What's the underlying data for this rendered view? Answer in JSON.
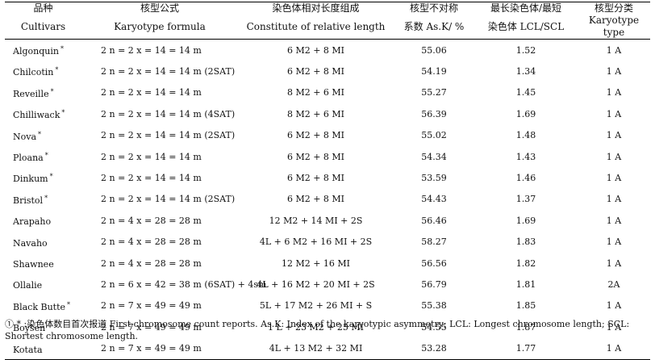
{
  "table": {
    "headers": [
      {
        "zh": "品种",
        "en": "Cultivars"
      },
      {
        "zh": "核型公式",
        "en": "Karyotype formula"
      },
      {
        "zh": "染色体相对长度组成",
        "en": "Constitute of relative length"
      },
      {
        "zh": "核型不对称",
        "en": "系数 As.K/ %"
      },
      {
        "zh": "最长染色体/最短",
        "en": "染色体 LCL/SCL"
      },
      {
        "zh": "核型分类",
        "en": "Karyotype type"
      }
    ],
    "rows": [
      {
        "cultivar": "Algonquin",
        "mark": "*",
        "formula": "2 n = 2 x = 14 = 14 m",
        "constitute": "6 M2 + 8 MI",
        "asym": "55.06",
        "ratio": "1.52",
        "type": "1 A"
      },
      {
        "cultivar": "Chilcotin",
        "mark": "*",
        "formula": "2 n = 2 x = 14 = 14 m (2SAT)",
        "constitute": "6 M2 + 8 MI",
        "asym": "54.19",
        "ratio": "1.34",
        "type": "1 A"
      },
      {
        "cultivar": "Reveille",
        "mark": "*",
        "formula": "2 n = 2 x = 14 = 14 m",
        "constitute": "8 M2 + 6 MI",
        "asym": "55.27",
        "ratio": "1.45",
        "type": "1 A"
      },
      {
        "cultivar": "Chilliwack",
        "mark": "*",
        "formula": "2 n = 2 x = 14 = 14 m (4SAT)",
        "constitute": "8 M2 + 6 MI",
        "asym": "56.39",
        "ratio": "1.69",
        "type": "1 A"
      },
      {
        "cultivar": "Nova",
        "mark": "*",
        "formula": "2 n = 2 x = 14 = 14 m (2SAT)",
        "constitute": "6 M2 + 8 MI",
        "asym": "55.02",
        "ratio": "1.48",
        "type": "1 A"
      },
      {
        "cultivar": "Ploana",
        "mark": "*",
        "formula": "2 n = 2 x = 14 = 14 m",
        "constitute": "6 M2 + 8 MI",
        "asym": "54.34",
        "ratio": "1.43",
        "type": "1 A"
      },
      {
        "cultivar": "Dinkum",
        "mark": "*",
        "formula": "2 n = 2 x = 14 = 14 m",
        "constitute": "6 M2 + 8 MI",
        "asym": "53.59",
        "ratio": "1.46",
        "type": "1 A"
      },
      {
        "cultivar": "Bristol",
        "mark": "*",
        "formula": "2 n = 2 x = 14 = 14 m (2SAT)",
        "constitute": "6 M2 + 8 MI",
        "asym": "54.43",
        "ratio": "1.37",
        "type": "1 A"
      },
      {
        "cultivar": "Arapaho",
        "mark": "",
        "formula": "2 n = 4 x = 28 = 28 m",
        "constitute": "12 M2 + 14 MI + 2S",
        "asym": "56.46",
        "ratio": "1.69",
        "type": "1 A"
      },
      {
        "cultivar": "Navaho",
        "mark": "",
        "formula": "2 n = 4 x = 28 = 28 m",
        "constitute": "4L + 6 M2 + 16 MI + 2S",
        "asym": "58.27",
        "ratio": "1.83",
        "type": "1 A"
      },
      {
        "cultivar": "Shawnee",
        "mark": "",
        "formula": "2 n = 4 x = 28 = 28 m",
        "constitute": "12 M2 + 16 MI",
        "asym": "56.56",
        "ratio": "1.82",
        "type": "1 A"
      },
      {
        "cultivar": "Ollalie",
        "mark": "",
        "formula": "2 n = 6 x = 42 = 38 m (6SAT) + 4sm",
        "constitute": "4L + 16 M2 + 20 MI + 2S",
        "asym": "56.79",
        "ratio": "1.81",
        "type": "2A"
      },
      {
        "cultivar": "Black Butte",
        "mark": "*",
        "formula": "2 n = 7 x = 49 = 49 m",
        "constitute": "5L + 17 M2 + 26 MI + S",
        "asym": "55.38",
        "ratio": "1.85",
        "type": "1 A"
      },
      {
        "cultivar": "Boysen",
        "mark": "",
        "formula": "2 n = 7 x = 49 = 49 m",
        "constitute": "1 L + 23 M2 + 25 MI",
        "asym": "54.55",
        "ratio": "1.87",
        "type": "1 A"
      },
      {
        "cultivar": "Kotata",
        "mark": "",
        "formula": "2 n = 7 x = 49 = 49 m",
        "constitute": "4L + 13 M2 + 32 MI",
        "asym": "53.28",
        "ratio": "1.77",
        "type": "1 A"
      }
    ]
  },
  "footnote": "① * :染色体数目首次报道 First chromosome count reports. As.K: Index of the karyotypic asymmetry; LCL: Longest chromosome length; SCL: Shortest chromosome length."
}
